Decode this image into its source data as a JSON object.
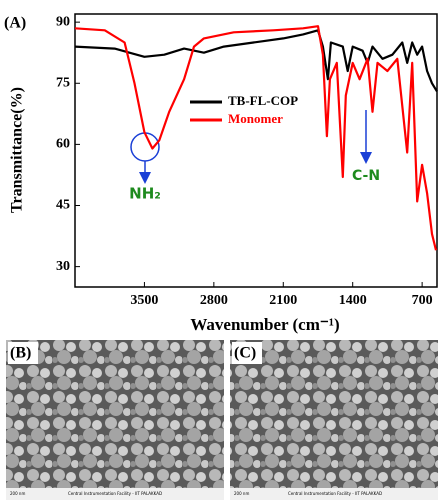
{
  "chart_data": {
    "type": "line",
    "panel_label": "(A)",
    "x_label": "Wavenumber (cm⁻¹)",
    "y_label": "Transmittance(%)",
    "xlim": [
      4200,
      550
    ],
    "xticks": [
      3500,
      2800,
      2100,
      1400,
      700
    ],
    "ylim": [
      25,
      92
    ],
    "yticks": [
      30,
      45,
      60,
      75,
      90
    ],
    "legend": "upper center",
    "annotations": [
      "NH₂",
      "C-N"
    ],
    "series": [
      {
        "name": "TB-FL-COP",
        "color": "#000000",
        "x": [
          4200,
          3800,
          3500,
          3300,
          3100,
          2900,
          2700,
          2400,
          2100,
          1900,
          1750,
          1700,
          1650,
          1620,
          1500,
          1450,
          1400,
          1300,
          1250,
          1200,
          1100,
          1000,
          900,
          850,
          800,
          750,
          700,
          650,
          600,
          550
        ],
        "values": [
          84,
          83.5,
          81.5,
          82,
          83.5,
          82.5,
          84,
          85,
          86,
          87,
          88,
          84,
          76,
          85,
          84,
          78,
          84,
          83,
          80,
          84,
          81,
          82,
          85,
          80,
          85,
          82,
          84,
          78,
          75,
          73
        ]
      },
      {
        "name": "Monomer",
        "color": "#ff0000",
        "x": [
          4200,
          3900,
          3700,
          3600,
          3500,
          3420,
          3350,
          3250,
          3100,
          3000,
          2900,
          2600,
          2200,
          1900,
          1750,
          1700,
          1660,
          1630,
          1560,
          1500,
          1470,
          1400,
          1330,
          1250,
          1200,
          1150,
          1050,
          950,
          850,
          800,
          750,
          700,
          650,
          600,
          560
        ],
        "values": [
          88.5,
          88,
          85,
          75,
          63,
          59,
          61,
          68,
          76,
          84,
          86,
          87.5,
          88,
          88.5,
          89,
          82,
          62,
          76,
          80,
          52,
          72,
          80,
          76,
          81,
          68,
          80,
          78,
          81,
          58,
          80,
          46,
          55,
          48,
          38,
          34
        ]
      }
    ]
  },
  "images": [
    {
      "label": "(B)",
      "footer": "Central Instrumentation Facility - IIT PALAKKAD",
      "scale": "200 nm"
    },
    {
      "label": "(C)",
      "footer": "Central Instrumentation Facility - IIT PALAKKAD",
      "scale": "200 nm"
    }
  ]
}
